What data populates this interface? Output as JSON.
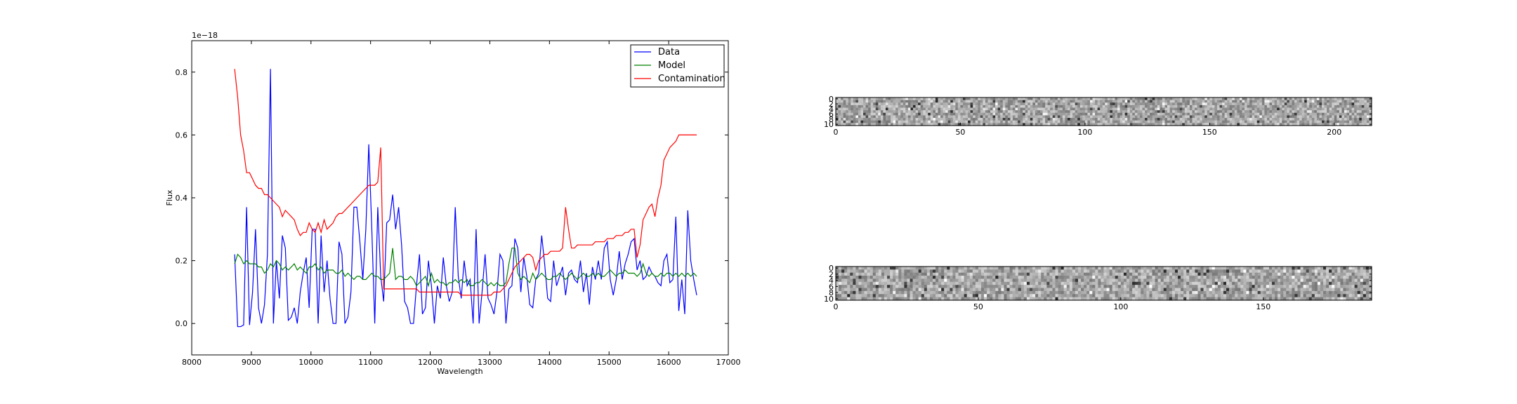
{
  "chart_data": [
    {
      "type": "line",
      "title": "",
      "xlabel": "Wavelength",
      "ylabel": "Flux",
      "offset_label": "1e−18",
      "xlim": [
        8000,
        17000
      ],
      "ylim": [
        -0.1,
        0.9
      ],
      "xticks": [
        "8000",
        "9000",
        "10000",
        "11000",
        "12000",
        "13000",
        "14000",
        "15000",
        "16000",
        "17000"
      ],
      "yticks": [
        "0.0",
        "0.2",
        "0.4",
        "0.6",
        "0.8"
      ],
      "legend": "top-right",
      "grid": false,
      "series": [
        {
          "name": "Data",
          "color": "#0000ff",
          "x": [
            8720,
            8770,
            8820,
            8870,
            8920,
            8970,
            9020,
            9070,
            9120,
            9170,
            9220,
            9270,
            9320,
            9370,
            9420,
            9470,
            9520,
            9570,
            9620,
            9670,
            9720,
            9770,
            9820,
            9870,
            9920,
            9970,
            10020,
            10070,
            10120,
            10170,
            10220,
            10270,
            10320,
            10370,
            10420,
            10470,
            10520,
            10570,
            10620,
            10670,
            10720,
            10770,
            10820,
            10870,
            10920,
            10970,
            11020,
            11070,
            11120,
            11170,
            11220,
            11270,
            11320,
            11370,
            11420,
            11470,
            11520,
            11570,
            11620,
            11670,
            11720,
            11770,
            11820,
            11870,
            11920,
            11970,
            12020,
            12070,
            12120,
            12170,
            12220,
            12270,
            12320,
            12370,
            12420,
            12470,
            12520,
            12570,
            12620,
            12670,
            12720,
            12770,
            12820,
            12870,
            12920,
            12970,
            13020,
            13070,
            13120,
            13170,
            13220,
            13270,
            13320,
            13370,
            13420,
            13470,
            13520,
            13570,
            13620,
            13670,
            13720,
            13770,
            13820,
            13870,
            13920,
            13970,
            14020,
            14070,
            14120,
            14170,
            14220,
            14270,
            14320,
            14370,
            14420,
            14470,
            14520,
            14570,
            14620,
            14670,
            14720,
            14770,
            14820,
            14870,
            14920,
            14970,
            15020,
            15070,
            15120,
            15170,
            15220,
            15270,
            15320,
            15370,
            15420,
            15470,
            15520,
            15570,
            15620,
            15670,
            15720,
            15770,
            15820,
            15870,
            15920,
            15970,
            16020,
            16070,
            16120,
            16170,
            16220,
            16270,
            16320,
            16370,
            16420,
            16470
          ],
          "y": [
            0.22,
            -0.01,
            -0.01,
            -0.005,
            0.37,
            -0.005,
            0.1,
            0.3,
            0.05,
            0.0,
            0.06,
            0.22,
            0.81,
            0.0,
            0.2,
            0.08,
            0.28,
            0.24,
            0.01,
            0.02,
            0.05,
            0.0,
            0.1,
            0.16,
            0.21,
            0.05,
            0.3,
            0.3,
            0.0,
            0.28,
            0.1,
            0.2,
            0.08,
            0.0,
            0.0,
            0.26,
            0.22,
            0.0,
            0.02,
            0.1,
            0.37,
            0.37,
            0.26,
            0.14,
            0.3,
            0.57,
            0.3,
            0.0,
            0.37,
            0.15,
            0.07,
            0.32,
            0.33,
            0.41,
            0.3,
            0.37,
            0.25,
            0.07,
            0.05,
            0.0,
            0.0,
            0.12,
            0.22,
            0.03,
            0.05,
            0.2,
            0.12,
            0.0,
            0.12,
            0.08,
            0.21,
            0.12,
            0.07,
            0.1,
            0.37,
            0.15,
            0.08,
            0.2,
            0.12,
            0.14,
            0.0,
            0.3,
            0.0,
            0.1,
            0.22,
            0.08,
            0.06,
            0.03,
            0.1,
            0.22,
            0.2,
            0.0,
            0.11,
            0.12,
            0.27,
            0.24,
            0.1,
            0.21,
            0.15,
            0.06,
            0.05,
            0.14,
            0.16,
            0.28,
            0.19,
            0.08,
            0.07,
            0.2,
            0.12,
            0.15,
            0.18,
            0.09,
            0.16,
            0.17,
            0.14,
            0.13,
            0.2,
            0.1,
            0.16,
            0.06,
            0.18,
            0.14,
            0.2,
            0.14,
            0.24,
            0.26,
            0.14,
            0.09,
            0.14,
            0.23,
            0.14,
            0.19,
            0.22,
            0.26,
            0.27,
            0.17,
            0.2,
            0.14,
            0.15,
            0.18,
            0.16,
            0.15,
            0.13,
            0.12,
            0.2,
            0.22,
            0.13,
            0.14,
            0.34,
            0.04,
            0.14,
            0.03,
            0.36,
            0.2,
            0.14,
            0.09
          ]
        },
        {
          "name": "Model",
          "color": "#008000",
          "x": [
            8720,
            8770,
            8820,
            8870,
            8920,
            8970,
            9020,
            9070,
            9120,
            9170,
            9220,
            9270,
            9320,
            9370,
            9420,
            9470,
            9520,
            9570,
            9620,
            9670,
            9720,
            9770,
            9820,
            9870,
            9920,
            9970,
            10020,
            10070,
            10120,
            10170,
            10220,
            10270,
            10320,
            10370,
            10420,
            10470,
            10520,
            10570,
            10620,
            10670,
            10720,
            10770,
            10820,
            10870,
            10920,
            10970,
            11020,
            11070,
            11120,
            11170,
            11220,
            11270,
            11320,
            11370,
            11420,
            11470,
            11520,
            11570,
            11620,
            11670,
            11720,
            11770,
            11820,
            11870,
            11920,
            11970,
            12020,
            12070,
            12120,
            12170,
            12220,
            12270,
            12320,
            12370,
            12420,
            12470,
            12520,
            12570,
            12620,
            12670,
            12720,
            12770,
            12820,
            12870,
            12920,
            12970,
            13020,
            13070,
            13120,
            13170,
            13220,
            13270,
            13320,
            13370,
            13420,
            13470,
            13520,
            13570,
            13620,
            13670,
            13720,
            13770,
            13820,
            13870,
            13920,
            13970,
            14020,
            14070,
            14120,
            14170,
            14220,
            14270,
            14320,
            14370,
            14420,
            14470,
            14520,
            14570,
            14620,
            14670,
            14720,
            14770,
            14820,
            14870,
            14920,
            14970,
            15020,
            15070,
            15120,
            15170,
            15220,
            15270,
            15320,
            15370,
            15420,
            15470,
            15520,
            15570,
            15620,
            15670,
            15720,
            15770,
            15820,
            15870,
            15920,
            15970,
            16020,
            16070,
            16120,
            16170,
            16220,
            16270,
            16320,
            16370,
            16420,
            16470
          ],
          "y": [
            0.19,
            0.22,
            0.21,
            0.19,
            0.2,
            0.19,
            0.19,
            0.19,
            0.18,
            0.18,
            0.16,
            0.17,
            0.19,
            0.18,
            0.2,
            0.19,
            0.17,
            0.18,
            0.17,
            0.18,
            0.19,
            0.17,
            0.18,
            0.17,
            0.16,
            0.18,
            0.18,
            0.19,
            0.17,
            0.18,
            0.16,
            0.17,
            0.17,
            0.17,
            0.16,
            0.16,
            0.17,
            0.15,
            0.16,
            0.15,
            0.14,
            0.15,
            0.15,
            0.14,
            0.14,
            0.15,
            0.16,
            0.15,
            0.15,
            0.14,
            0.14,
            0.15,
            0.16,
            0.24,
            0.14,
            0.15,
            0.15,
            0.14,
            0.14,
            0.15,
            0.14,
            0.12,
            0.13,
            0.14,
            0.15,
            0.12,
            0.16,
            0.13,
            0.14,
            0.13,
            0.13,
            0.12,
            0.13,
            0.13,
            0.14,
            0.13,
            0.14,
            0.13,
            0.14,
            0.12,
            0.12,
            0.13,
            0.13,
            0.14,
            0.13,
            0.12,
            0.13,
            0.12,
            0.13,
            0.12,
            0.12,
            0.13,
            0.19,
            0.24,
            0.24,
            0.16,
            0.14,
            0.15,
            0.14,
            0.13,
            0.16,
            0.14,
            0.15,
            0.16,
            0.15,
            0.14,
            0.14,
            0.15,
            0.15,
            0.16,
            0.15,
            0.14,
            0.15,
            0.16,
            0.15,
            0.14,
            0.15,
            0.16,
            0.15,
            0.15,
            0.16,
            0.15,
            0.16,
            0.15,
            0.15,
            0.16,
            0.17,
            0.16,
            0.15,
            0.16,
            0.16,
            0.17,
            0.16,
            0.16,
            0.16,
            0.15,
            0.16,
            0.19,
            0.16,
            0.15,
            0.16,
            0.15,
            0.15,
            0.16,
            0.15,
            0.16,
            0.16,
            0.15,
            0.16,
            0.15,
            0.16,
            0.15,
            0.16,
            0.15,
            0.16,
            0.15
          ]
        },
        {
          "name": "Contamination",
          "color": "#ff0000",
          "x": [
            8720,
            8770,
            8820,
            8870,
            8920,
            8970,
            9020,
            9070,
            9120,
            9170,
            9220,
            9270,
            9320,
            9370,
            9420,
            9470,
            9520,
            9570,
            9620,
            9670,
            9720,
            9770,
            9820,
            9870,
            9920,
            9970,
            10020,
            10070,
            10120,
            10170,
            10220,
            10270,
            10320,
            10370,
            10420,
            10470,
            10520,
            10570,
            10620,
            10670,
            10720,
            10770,
            10820,
            10870,
            10920,
            10970,
            11020,
            11070,
            11120,
            11170,
            11220,
            11270,
            11320,
            11370,
            11420,
            11470,
            11520,
            11570,
            11620,
            11670,
            11720,
            11770,
            11820,
            11870,
            11920,
            11970,
            12020,
            12070,
            12120,
            12170,
            12220,
            12270,
            12320,
            12370,
            12420,
            12470,
            12520,
            12570,
            12620,
            12670,
            12720,
            12770,
            12820,
            12870,
            12920,
            12970,
            13020,
            13070,
            13120,
            13170,
            13220,
            13270,
            13320,
            13370,
            13420,
            13470,
            13520,
            13570,
            13620,
            13670,
            13720,
            13770,
            13820,
            13870,
            13920,
            13970,
            14020,
            14070,
            14120,
            14170,
            14220,
            14270,
            14320,
            14370,
            14420,
            14470,
            14520,
            14570,
            14620,
            14670,
            14720,
            14770,
            14820,
            14870,
            14920,
            14970,
            15020,
            15070,
            15120,
            15170,
            15220,
            15270,
            15320,
            15370,
            15420,
            15470,
            15520,
            15570,
            15620,
            15670,
            15720,
            15770,
            15820,
            15870,
            15920,
            15970,
            16020,
            16070,
            16120,
            16170,
            16220,
            16270,
            16320,
            16370,
            16420,
            16470
          ],
          "y": [
            0.81,
            0.72,
            0.6,
            0.55,
            0.48,
            0.48,
            0.46,
            0.44,
            0.43,
            0.43,
            0.41,
            0.41,
            0.4,
            0.39,
            0.38,
            0.37,
            0.34,
            0.36,
            0.35,
            0.34,
            0.33,
            0.3,
            0.28,
            0.29,
            0.29,
            0.32,
            0.3,
            0.29,
            0.32,
            0.29,
            0.33,
            0.3,
            0.31,
            0.32,
            0.34,
            0.35,
            0.35,
            0.36,
            0.37,
            0.38,
            0.39,
            0.4,
            0.41,
            0.42,
            0.43,
            0.44,
            0.44,
            0.44,
            0.45,
            0.56,
            0.11,
            0.11,
            0.11,
            0.11,
            0.11,
            0.11,
            0.11,
            0.11,
            0.11,
            0.11,
            0.11,
            0.11,
            0.1,
            0.1,
            0.1,
            0.1,
            0.1,
            0.1,
            0.1,
            0.1,
            0.1,
            0.1,
            0.1,
            0.1,
            0.1,
            0.1,
            0.09,
            0.09,
            0.09,
            0.09,
            0.09,
            0.09,
            0.09,
            0.09,
            0.09,
            0.09,
            0.09,
            0.1,
            0.1,
            0.1,
            0.11,
            0.12,
            0.14,
            0.16,
            0.18,
            0.19,
            0.2,
            0.21,
            0.22,
            0.22,
            0.21,
            0.17,
            0.2,
            0.21,
            0.22,
            0.22,
            0.23,
            0.23,
            0.23,
            0.23,
            0.24,
            0.37,
            0.3,
            0.24,
            0.24,
            0.25,
            0.25,
            0.25,
            0.25,
            0.25,
            0.25,
            0.26,
            0.26,
            0.26,
            0.26,
            0.27,
            0.27,
            0.27,
            0.28,
            0.28,
            0.28,
            0.29,
            0.29,
            0.3,
            0.3,
            0.21,
            0.25,
            0.33,
            0.35,
            0.37,
            0.38,
            0.34,
            0.4,
            0.44,
            0.52,
            0.54,
            0.56,
            0.57,
            0.58,
            0.6,
            0.6,
            0.6,
            0.6,
            0.6,
            0.6,
            0.6
          ]
        }
      ]
    },
    {
      "type": "heatmap",
      "colormap": "gray",
      "xlim": [
        0,
        215
      ],
      "ylim": [
        0,
        11
      ],
      "xticks": [
        "0",
        "50",
        "100",
        "150",
        "200"
      ],
      "yticks": [
        "0",
        "2",
        "4",
        "6",
        "8",
        "10"
      ]
    },
    {
      "type": "heatmap",
      "colormap": "gray",
      "xlim": [
        0,
        188
      ],
      "ylim": [
        0,
        11
      ],
      "xticks": [
        "0",
        "50",
        "100",
        "150"
      ],
      "yticks": [
        "0",
        "2",
        "4",
        "6",
        "8",
        "10"
      ]
    }
  ]
}
